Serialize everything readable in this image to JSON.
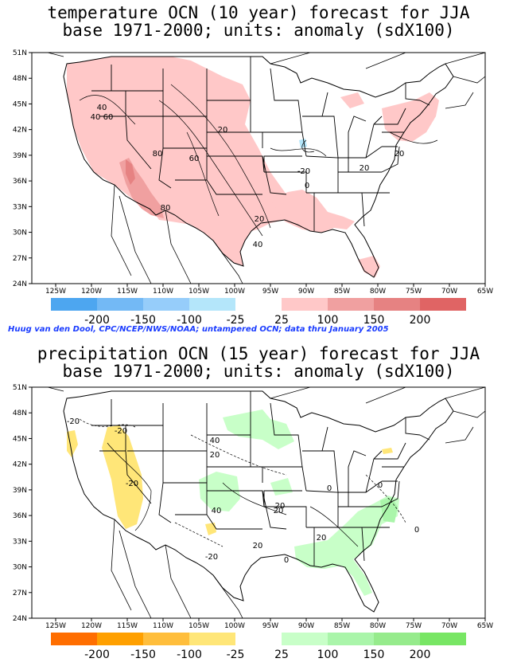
{
  "maps": [
    {
      "title_line1": "temperature OCN (10 year) forecast for JJA",
      "title_line2": "base 1971-2000; units: anomaly (sdX100)",
      "lat_ticks": [
        "51N",
        "48N",
        "45N",
        "42N",
        "39N",
        "36N",
        "33N",
        "30N",
        "27N",
        "24N"
      ],
      "lon_ticks": [
        "125W",
        "120W",
        "115W",
        "110W",
        "105W",
        "100W",
        "95W",
        "90W",
        "85W",
        "80W",
        "75W",
        "70W",
        "65W"
      ],
      "contour_labels": [
        "40",
        "60",
        "40",
        "20",
        "80",
        "60",
        "-20",
        "20",
        "0",
        "80",
        "20",
        "40",
        "20"
      ],
      "legend_negative": {
        "labels": [
          "-200",
          "-150",
          "-100",
          "-25"
        ],
        "colors": [
          "#4da6f0",
          "#73b9f5",
          "#96cdfa",
          "#b4e6fa"
        ]
      },
      "legend_positive": {
        "labels": [
          "25",
          "100",
          "150",
          "200"
        ],
        "colors": [
          "#ffc8c8",
          "#f0a0a0",
          "#e68282",
          "#e06464"
        ]
      }
    },
    {
      "title_line1": "precipitation OCN (15 year) forecast for JJA",
      "title_line2": "base 1971-2000; units: anomaly (sdX100)",
      "lat_ticks": [
        "51N",
        "48N",
        "45N",
        "42N",
        "39N",
        "36N",
        "33N",
        "30N",
        "27N",
        "24N"
      ],
      "lon_ticks": [
        "125W",
        "120W",
        "115W",
        "110W",
        "105W",
        "100W",
        "95W",
        "90W",
        "85W",
        "80W",
        "75W",
        "70W",
        "65W"
      ],
      "contour_labels": [
        "-20",
        "-20",
        "40",
        "20",
        "-20",
        "40",
        "20",
        "20",
        "-20",
        "20",
        "0",
        "20",
        "0",
        "0",
        "0"
      ],
      "legend_negative": {
        "labels": [
          "-200",
          "-150",
          "-100",
          "-25"
        ],
        "colors": [
          "#ff6e00",
          "#ffa000",
          "#ffbe3c",
          "#ffe678"
        ]
      },
      "legend_positive": {
        "labels": [
          "25",
          "100",
          "150",
          "200"
        ],
        "colors": [
          "#c8ffc8",
          "#aaf5aa",
          "#96eb8c",
          "#78e664"
        ]
      }
    }
  ],
  "credit": "Huug van den Dool, CPC/NCEP/NWS/NOAA; untampered OCN; data thru January 2005"
}
